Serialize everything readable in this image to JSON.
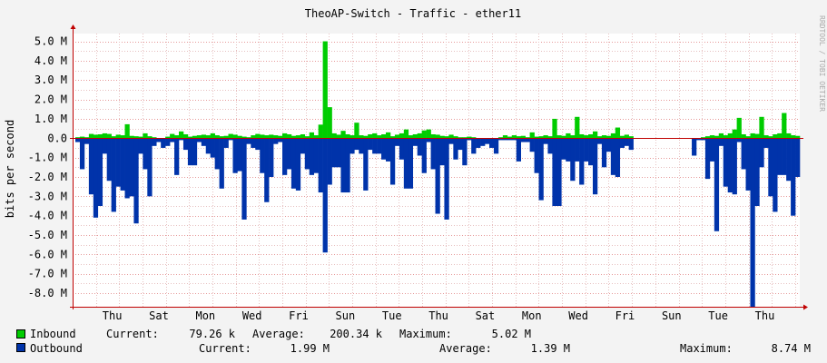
{
  "chart_data": {
    "type": "area",
    "title": "TheoAP-Switch - Traffic - ether11",
    "ylabel": "bits per second",
    "watermark": "RRDTOOL / TOBI OETIKER",
    "y_ticks": [
      {
        "value": 5.0,
        "label": "5.0 M"
      },
      {
        "value": 4.0,
        "label": "4.0 M"
      },
      {
        "value": 3.0,
        "label": "3.0 M"
      },
      {
        "value": 2.0,
        "label": "2.0 M"
      },
      {
        "value": 1.0,
        "label": "1.0 M"
      },
      {
        "value": 0.0,
        "label": "0.0"
      },
      {
        "value": -1.0,
        "label": "-1.0 M"
      },
      {
        "value": -2.0,
        "label": "-2.0 M"
      },
      {
        "value": -3.0,
        "label": "-3.0 M"
      },
      {
        "value": -4.0,
        "label": "-4.0 M"
      },
      {
        "value": -5.0,
        "label": "-5.0 M"
      },
      {
        "value": -6.0,
        "label": "-6.0 M"
      },
      {
        "value": -7.0,
        "label": "-7.0 M"
      },
      {
        "value": -8.0,
        "label": "-8.0 M"
      }
    ],
    "ylim": [
      -8.7,
      5.4
    ],
    "x_ticks": [
      "Thu",
      "Sat",
      "Mon",
      "Wed",
      "Fri",
      "Sun",
      "Tue",
      "Thu",
      "Sat",
      "Mon",
      "Wed",
      "Fri",
      "Sun",
      "Tue",
      "Thu"
    ],
    "x_days_span": 15.6,
    "x_first_tick_day": 0.85,
    "grid": true,
    "colors": {
      "inbound": "#00cc00",
      "outbound": "#0033aa",
      "grid": "#e08080",
      "axis": "#c00000"
    },
    "series": [
      {
        "name": "Inbound",
        "values": [
          0.05,
          0.08,
          0.05,
          0.22,
          0.18,
          0.2,
          0.25,
          0.22,
          0.1,
          0.18,
          0.15,
          0.72,
          0.12,
          0.1,
          0.08,
          0.25,
          0.1,
          0.05,
          0,
          0,
          0.08,
          0.22,
          0.15,
          0.35,
          0.2,
          0.08,
          0.12,
          0.15,
          0.18,
          0.15,
          0.25,
          0.15,
          0.1,
          0.12,
          0.22,
          0.18,
          0.12,
          0.08,
          0.05,
          0.15,
          0.22,
          0.18,
          0.15,
          0.18,
          0.15,
          0.12,
          0.25,
          0.2,
          0.12,
          0.15,
          0.2,
          0.1,
          0.3,
          0.15,
          0.7,
          5.0,
          1.6,
          0.25,
          0.18,
          0.38,
          0.2,
          0.15,
          0.8,
          0.15,
          0.12,
          0.2,
          0.25,
          0.15,
          0.2,
          0.3,
          0.1,
          0.18,
          0.25,
          0.45,
          0.15,
          0.2,
          0.25,
          0.4,
          0.45,
          0.2,
          0.18,
          0.12,
          0.1,
          0.18,
          0.1,
          0.05,
          0.05,
          0.08,
          0.05,
          0,
          0,
          0,
          0,
          0,
          0.05,
          0.15,
          0.08,
          0.15,
          0.1,
          0.12,
          0.05,
          0.3,
          0.08,
          0.1,
          0.15,
          0.1,
          1.0,
          0.15,
          0.12,
          0.25,
          0.15,
          1.1,
          0.2,
          0.15,
          0.2,
          0.35,
          0.1,
          0.15,
          0.12,
          0.25,
          0.55,
          0.12,
          0.18,
          0.1,
          0,
          0,
          0,
          0,
          0,
          0,
          0,
          0,
          0,
          0,
          0,
          0,
          0,
          0,
          0,
          0.05,
          0.1,
          0.15,
          0.12,
          0.25,
          0.15,
          0.25,
          0.45,
          1.05,
          0.2,
          0.1,
          0.25,
          0.22,
          1.1,
          0.15,
          0.1,
          0.2,
          0.25,
          1.3,
          0.25,
          0.15,
          0.12
        ],
        "current": "79.26 k",
        "average": "200.34 k",
        "maximum": "5.02 M"
      },
      {
        "name": "Outbound",
        "values": [
          -0.2,
          -1.6,
          -0.3,
          -2.9,
          -4.1,
          -3.5,
          -0.8,
          -2.2,
          -3.8,
          -2.5,
          -2.7,
          -3.1,
          -3.0,
          -4.4,
          -0.8,
          -1.6,
          -3.0,
          -0.4,
          -0.2,
          -0.5,
          -0.4,
          -0.2,
          -1.9,
          -0.1,
          -0.6,
          -1.4,
          -1.4,
          -0.2,
          -0.4,
          -0.8,
          -1.0,
          -1.6,
          -2.6,
          -0.5,
          -0.1,
          -1.8,
          -1.7,
          -4.2,
          -0.3,
          -0.5,
          -0.6,
          -1.8,
          -3.3,
          -2.0,
          -0.3,
          -0.2,
          -1.9,
          -1.6,
          -2.6,
          -2.7,
          -0.8,
          -1.6,
          -1.9,
          -1.8,
          -2.8,
          -5.9,
          -2.4,
          -1.5,
          -1.5,
          -2.8,
          -2.8,
          -0.8,
          -0.6,
          -0.8,
          -2.7,
          -0.6,
          -0.8,
          -0.8,
          -1.1,
          -1.2,
          -2.4,
          -0.4,
          -1.1,
          -2.6,
          -2.6,
          -0.4,
          -0.9,
          -1.8,
          -0.2,
          -1.6,
          -3.9,
          -1.4,
          -4.2,
          -0.3,
          -1.1,
          -0.6,
          -1.4,
          -0.1,
          -0.8,
          -0.5,
          -0.4,
          -0.3,
          -0.5,
          -0.8,
          -0.1,
          -0.1,
          -0.1,
          -0.1,
          -1.2,
          -0.2,
          -0.2,
          -0.7,
          -1.8,
          -3.2,
          -0.3,
          -0.8,
          -3.5,
          -3.5,
          -1.1,
          -1.2,
          -2.2,
          -1.2,
          -2.4,
          -1.2,
          -1.4,
          -2.9,
          -0.3,
          -1.5,
          -0.7,
          -1.9,
          -2.0,
          -0.5,
          -0.4,
          -0.6,
          0,
          0,
          0,
          0,
          0,
          0,
          0,
          0,
          0,
          0,
          0,
          0,
          0,
          -0.9,
          -0.1,
          -0.1,
          -2.1,
          -1.2,
          -4.8,
          -0.4,
          -2.5,
          -2.8,
          -2.9,
          -0.2,
          -1.6,
          -2.7,
          -8.7,
          -3.5,
          -1.5,
          -0.5,
          -3.0,
          -3.8,
          -1.9,
          -1.9,
          -2.2,
          -4.0,
          -2.0
        ],
        "current": "1.99 M",
        "average": "1.39 M",
        "maximum": "8.74 M"
      }
    ]
  },
  "legend": {
    "current_label": "Current:",
    "average_label": "Average:",
    "maximum_label": "Maximum:"
  }
}
